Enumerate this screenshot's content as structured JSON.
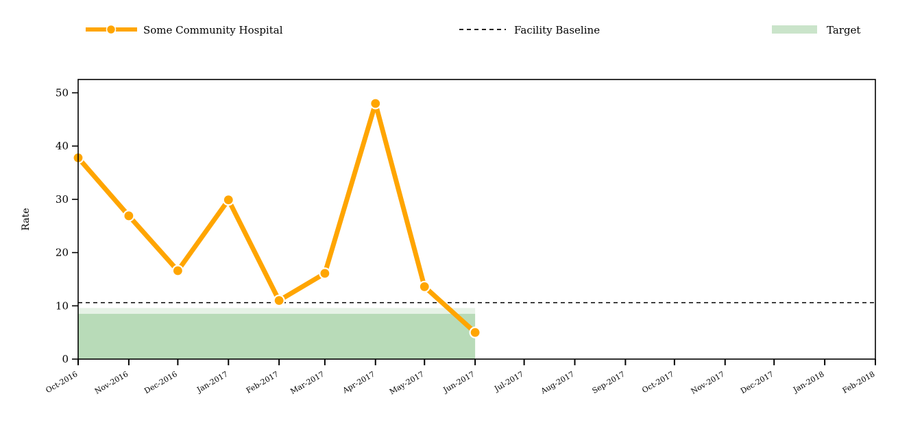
{
  "chart_data": {
    "type": "line",
    "title": "",
    "xlabel": "",
    "ylabel": "Rate",
    "ylim": [
      0,
      52.5
    ],
    "grid": false,
    "legend_position": "top",
    "x_ticks": [
      "Oct-2016",
      "Nov-2016",
      "Dec-2016",
      "Jan-2017",
      "Feb-2017",
      "Mar-2017",
      "Apr-2017",
      "May-2017",
      "Jun-2017",
      "Jul-2017",
      "Aug-2017",
      "Sep-2017",
      "Oct-2017",
      "Nov-2017",
      "Dec-2017",
      "Jan-2018",
      "Feb-2018"
    ],
    "y_ticks": [
      0,
      10,
      20,
      30,
      40,
      50
    ],
    "series": [
      {
        "name": "Some Community Hospital",
        "color": "#FFA500",
        "x": [
          "Oct-2016",
          "Nov-2016",
          "Dec-2016",
          "Jan-2017",
          "Feb-2017",
          "Mar-2017",
          "Apr-2017",
          "May-2017",
          "Jun-2017"
        ],
        "values": [
          37.8,
          26.9,
          16.6,
          29.9,
          11.0,
          16.1,
          48.0,
          13.6,
          5.0
        ]
      }
    ],
    "baseline": {
      "name": "Facility Baseline",
      "value": 10.6,
      "color": "#000000"
    },
    "target": {
      "name": "Target",
      "color": "#b8dbb8",
      "x_start": "Oct-2016",
      "x_end": "Jun-2017",
      "lower": 0,
      "upper": 8.5,
      "upper_band": 9.6
    }
  }
}
